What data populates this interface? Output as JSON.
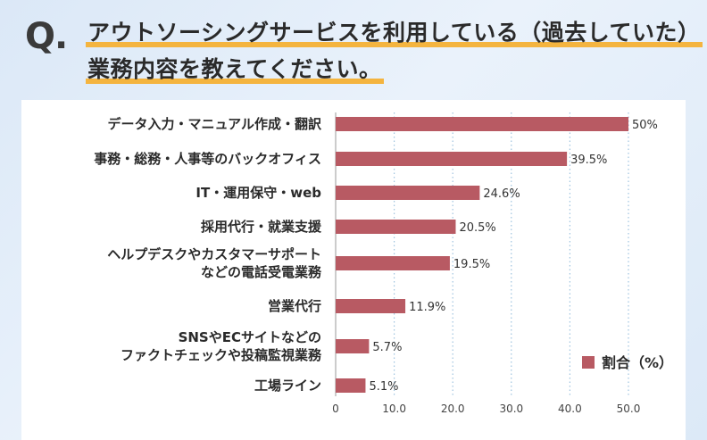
{
  "header": {
    "q_mark": "Q.",
    "title_line1": "アウトソーシングサービスを利用している（過去していた）",
    "title_line2": "業務内容を教えてください。"
  },
  "chart_data": {
    "type": "bar",
    "orientation": "horizontal",
    "categories": [
      [
        "データ入力・マニュアル作成・翻訳"
      ],
      [
        "事務・総務・人事等のバックオフィス"
      ],
      [
        "IT・運用保守・web"
      ],
      [
        "採用代行・就業支援"
      ],
      [
        "ヘルプデスクやカスタマーサポート",
        "などの電話受電業務"
      ],
      [
        "営業代行"
      ],
      [
        "SNSやECサイトなどの",
        "ファクトチェックや投稿監視業務"
      ],
      [
        "工場ライン"
      ]
    ],
    "series": [
      {
        "name": "割合（%）",
        "values": [
          50,
          39.5,
          24.6,
          20.5,
          19.5,
          11.9,
          5.7,
          5.1
        ],
        "labels": [
          "50%",
          "39.5%",
          "24.6%",
          "20.5%",
          "19.5%",
          "11.9%",
          "5.7%",
          "5.1%"
        ]
      }
    ],
    "x_ticks": [
      "0",
      "10.0",
      "20.0",
      "30.0",
      "40.0",
      "50.0"
    ],
    "xlim": [
      0,
      50
    ],
    "grid": "vertical-dotted",
    "legend_position": "bottom-right",
    "colors": {
      "bar": "#b85a63",
      "grid": "#9ec3df"
    }
  }
}
